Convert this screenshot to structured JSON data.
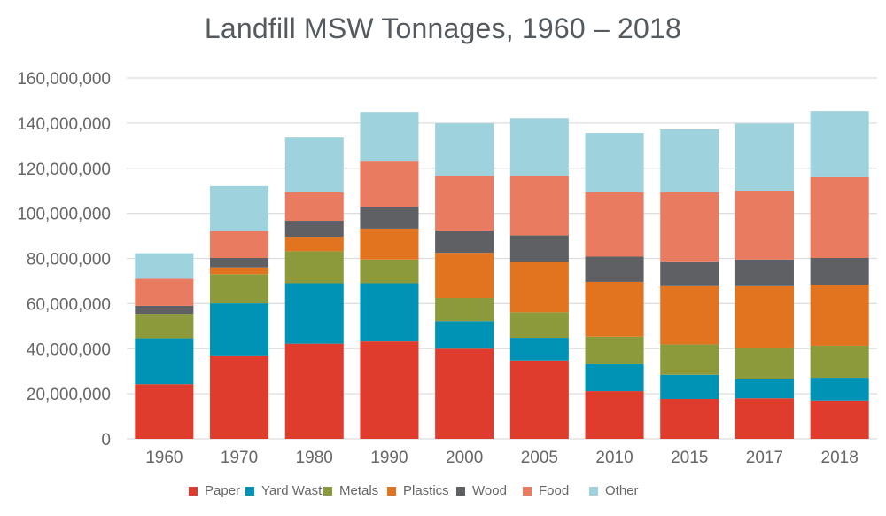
{
  "chart_data": {
    "type": "bar",
    "stacked": true,
    "title": "Landfill MSW Tonnages, 1960 – 2018",
    "xlabel": "",
    "ylabel": "",
    "ylim": [
      0,
      160000000
    ],
    "yticks": [
      0,
      20000000,
      40000000,
      60000000,
      80000000,
      100000000,
      120000000,
      140000000,
      160000000
    ],
    "ytick_labels": [
      "0",
      "20,000,000",
      "40,000,000",
      "60,000,000",
      "80,000,000",
      "100,000,000",
      "120,000,000",
      "140,000,000",
      "160,000,000"
    ],
    "grid": true,
    "legend_position": "bottom",
    "categories": [
      "1960",
      "1970",
      "1980",
      "1990",
      "2000",
      "2005",
      "2010",
      "2015",
      "2017",
      "2018"
    ],
    "series": [
      {
        "name": "Paper",
        "color": "#E03C2E",
        "values": [
          24300000,
          37000000,
          42200000,
          43200000,
          40000000,
          34700000,
          21200000,
          17700000,
          18000000,
          17000000
        ]
      },
      {
        "name": "Yard Waste",
        "color": "#0093B5",
        "values": [
          20300000,
          23100000,
          26800000,
          25800000,
          12200000,
          10100000,
          12100000,
          10700000,
          8500000,
          10100000
        ]
      },
      {
        "name": "Metals",
        "color": "#8C9A3C",
        "values": [
          10800000,
          12900000,
          14200000,
          10500000,
          10300000,
          11300000,
          12000000,
          13500000,
          14000000,
          14200000
        ]
      },
      {
        "name": "Plastics",
        "color": "#E2731F",
        "values": [
          0,
          3000000,
          6400000,
          13700000,
          20000000,
          22300000,
          24300000,
          25800000,
          27200000,
          27100000
        ]
      },
      {
        "name": "Wood",
        "color": "#5F6064",
        "values": [
          3600000,
          4200000,
          7100000,
          9700000,
          9900000,
          11800000,
          11200000,
          11000000,
          11800000,
          11800000
        ]
      },
      {
        "name": "Food",
        "color": "#E87B60",
        "values": [
          12000000,
          12000000,
          12600000,
          20100000,
          24200000,
          26400000,
          28600000,
          30700000,
          30600000,
          35800000
        ]
      },
      {
        "name": "Other",
        "color": "#9ED3DE",
        "values": [
          11300000,
          19900000,
          24300000,
          22000000,
          23300000,
          25600000,
          26200000,
          27800000,
          29700000,
          29400000
        ]
      }
    ]
  }
}
